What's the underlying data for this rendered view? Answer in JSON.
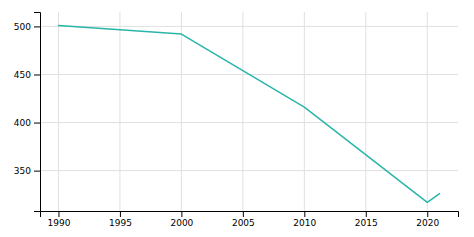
{
  "chart_data": {
    "type": "line",
    "x": [
      1990,
      2000,
      2010,
      2020,
      2021
    ],
    "values": [
      501,
      492,
      416,
      317,
      326
    ],
    "color": "#2ab5aa",
    "xlim": [
      1988.5,
      2022.5
    ],
    "ylim": [
      308,
      515
    ],
    "xticks": [
      1990,
      1995,
      2000,
      2005,
      2010,
      2015,
      2020
    ],
    "yticks": [
      350,
      400,
      450,
      500
    ],
    "grid": true
  }
}
